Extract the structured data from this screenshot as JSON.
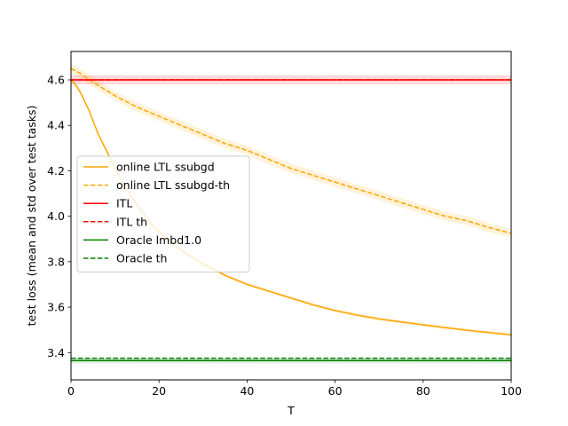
{
  "chart_data": {
    "type": "line",
    "xlabel": "T",
    "ylabel": "test loss (mean and std over test tasks)",
    "xlim": [
      0,
      100
    ],
    "ylim": [
      3.28,
      4.725
    ],
    "xticks": [
      0,
      20,
      40,
      60,
      80,
      100
    ],
    "yticks": [
      3.4,
      3.6,
      3.8,
      4.0,
      4.2,
      4.4,
      4.6
    ],
    "xtick_labels": [
      "0",
      "20",
      "40",
      "60",
      "80",
      "100"
    ],
    "ytick_labels": [
      "3.4",
      "3.6",
      "3.8",
      "4.0",
      "4.2",
      "4.4",
      "4.6"
    ],
    "grid": false,
    "legend_position": "center-left",
    "series": [
      {
        "name": "online LTL ssubgd",
        "color": "#ffa500",
        "dash": "solid",
        "std": 0.008,
        "x": [
          0,
          1,
          2,
          3,
          4,
          5,
          6,
          8,
          10,
          12,
          15,
          18,
          20,
          25,
          30,
          35,
          40,
          45,
          50,
          55,
          60,
          65,
          70,
          75,
          80,
          85,
          90,
          95,
          100
        ],
        "y": [
          4.6,
          4.58,
          4.55,
          4.51,
          4.47,
          4.42,
          4.37,
          4.29,
          4.21,
          4.14,
          4.05,
          3.97,
          3.93,
          3.85,
          3.79,
          3.74,
          3.7,
          3.67,
          3.64,
          3.61,
          3.585,
          3.565,
          3.548,
          3.535,
          3.522,
          3.51,
          3.498,
          3.488,
          3.478
        ]
      },
      {
        "name": "online LTL ssubgd-th",
        "color": "#ffa500",
        "dash": "dashed",
        "std": 0.02,
        "x": [
          0,
          2,
          5,
          10,
          15,
          20,
          25,
          30,
          35,
          40,
          45,
          50,
          55,
          60,
          65,
          70,
          75,
          80,
          85,
          90,
          95,
          100
        ],
        "y": [
          4.65,
          4.63,
          4.59,
          4.53,
          4.48,
          4.44,
          4.4,
          4.36,
          4.32,
          4.29,
          4.25,
          4.21,
          4.18,
          4.15,
          4.12,
          4.09,
          4.06,
          4.03,
          4.0,
          3.98,
          3.95,
          3.925
        ]
      },
      {
        "name": "ITL",
        "color": "#ff0000",
        "dash": "solid",
        "std": 0.02,
        "x": [
          0,
          100
        ],
        "y": [
          4.6,
          4.6
        ]
      },
      {
        "name": "ITL th",
        "color": "#ff0000",
        "dash": "dashed",
        "std": 0,
        "x": [
          0,
          100
        ],
        "y": [
          4.6,
          4.6
        ]
      },
      {
        "name": "Oracle lmbd1.0",
        "color": "#008000",
        "dash": "solid",
        "std": 0.012,
        "x": [
          0,
          100
        ],
        "y": [
          3.365,
          3.365
        ]
      },
      {
        "name": "Oracle th",
        "color": "#008000",
        "dash": "dashed",
        "std": 0,
        "x": [
          0,
          100
        ],
        "y": [
          3.375,
          3.375
        ]
      }
    ]
  }
}
